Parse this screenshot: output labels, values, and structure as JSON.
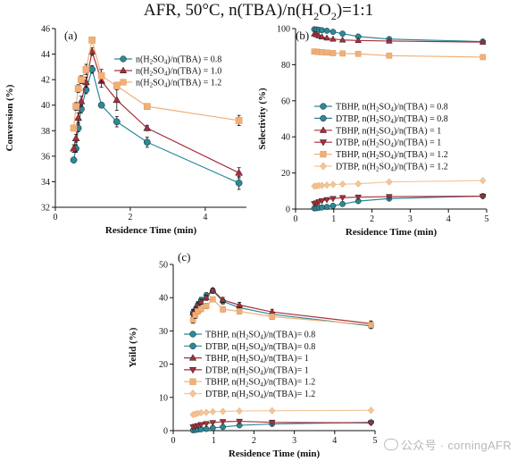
{
  "title_main": "AFR, 50°C, n(TBA)/n(H",
  "title_sub": "2",
  "title_mid": "O",
  "title_sub2": "2",
  "title_end": ")=1:1",
  "watermark": "公众号 · corningAFR",
  "colors": {
    "teal": "#2a8a9a",
    "red": "#a82f3a",
    "orange": "#f0b07a",
    "peach": "#f2c79c"
  },
  "chart_data": [
    {
      "id": "a",
      "panel_label": "(a)",
      "type": "line",
      "xlabel": "Residence Time (min)",
      "ylabel": "Conversion (%)",
      "xlim": [
        0,
        5.1
      ],
      "ylim": [
        32,
        46
      ],
      "xticks": [
        0,
        2,
        4
      ],
      "xtick_labels": [
        "0",
        "2",
        "4"
      ],
      "yticks": [
        32,
        34,
        36,
        38,
        40,
        42,
        44,
        46
      ],
      "ytick_labels": [
        "32",
        "34",
        "36",
        "38",
        "40",
        "42",
        "44",
        "46"
      ],
      "legend": "top-right",
      "series": [
        {
          "name_pre": "n(H",
          "name_sub": "2",
          "name_mid": "SO",
          "name_sub2": "4",
          "name_post": ")/n(TBA) = 0.8",
          "color": "#2a8a9a",
          "marker": "circle",
          "x": [
            0.49,
            0.55,
            0.61,
            0.69,
            0.82,
            0.98,
            1.23,
            1.64,
            2.45,
            4.9
          ],
          "y": [
            35.7,
            36.6,
            38.2,
            39.7,
            41.2,
            42.8,
            40.0,
            38.7,
            37.1,
            33.9
          ],
          "err": [
            0.2,
            0.3,
            0.3,
            0.3,
            0.3,
            0.3,
            0.2,
            0.4,
            0.4,
            0.5
          ]
        },
        {
          "name_pre": "n(H",
          "name_sub": "2",
          "name_mid": "SO",
          "name_sub2": "4",
          "name_post": ")/n(TBA) = 1.0",
          "color": "#a82f3a",
          "marker": "triangle-up",
          "x": [
            0.49,
            0.55,
            0.61,
            0.69,
            0.82,
            0.98,
            1.23,
            1.64,
            2.45,
            4.9
          ],
          "y": [
            36.6,
            37.4,
            39.0,
            40.3,
            41.8,
            44.2,
            41.9,
            40.4,
            38.2,
            34.7
          ],
          "err": [
            0.3,
            0.3,
            0.4,
            0.4,
            0.4,
            0.3,
            0.5,
            0.8,
            0.2,
            0.4
          ]
        },
        {
          "name_pre": "n(H",
          "name_sub": "2",
          "name_mid": "SO",
          "name_sub2": "4",
          "name_post": ")/n(TBA) = 1.2",
          "color": "#f0b07a",
          "marker": "square",
          "x": [
            0.49,
            0.55,
            0.61,
            0.69,
            0.82,
            0.98,
            1.23,
            1.64,
            2.45,
            4.9
          ],
          "y": [
            38.2,
            39.9,
            41.3,
            42.0,
            42.8,
            45.1,
            42.3,
            41.5,
            39.9,
            38.8
          ],
          "err": [
            0.2,
            0.3,
            0.3,
            0.3,
            0.4,
            0.2,
            0.5,
            0.2,
            0.2,
            0.4
          ]
        }
      ]
    },
    {
      "id": "b",
      "panel_label": "(b)",
      "type": "line",
      "xlabel": "Residence Time (min)",
      "ylabel": "Selectivity (%)",
      "xlim": [
        0,
        5.0
      ],
      "ylim": [
        0,
        100
      ],
      "xticks": [
        0,
        1,
        2,
        3,
        4,
        5
      ],
      "xtick_labels": [
        "0",
        "1",
        "2",
        "3",
        "4",
        "5"
      ],
      "yticks": [
        0,
        20,
        40,
        60,
        80,
        100
      ],
      "ytick_labels": [
        "0",
        "20",
        "40",
        "60",
        "80",
        "100"
      ],
      "legend": "center-right",
      "series": [
        {
          "name_pre": "TBHP, n(H",
          "name_sub": "2",
          "name_mid": "SO",
          "name_sub2": "4",
          "name_post": ")/n(TBA) = 0.8",
          "color": "#2a8a9a",
          "marker": "circle",
          "x": [
            0.49,
            0.55,
            0.61,
            0.69,
            0.82,
            0.98,
            1.23,
            1.64,
            2.45,
            4.9
          ],
          "y": [
            99.6,
            99.5,
            99.3,
            99.1,
            98.8,
            98.2,
            97.2,
            95.6,
            94.2,
            92.8
          ],
          "err": []
        },
        {
          "name_pre": "DTBP, n(H",
          "name_sub": "2",
          "name_mid": "SO",
          "name_sub2": "4",
          "name_post": ")/n(TBA) = 0.8",
          "color": "#2a8a9a",
          "marker": "circle",
          "x": [
            0.49,
            0.55,
            0.61,
            0.69,
            0.82,
            0.98,
            1.23,
            1.64,
            2.45,
            4.9
          ],
          "y": [
            0.4,
            0.5,
            0.7,
            0.9,
            1.2,
            1.8,
            2.8,
            4.4,
            5.8,
            7.2
          ],
          "err": []
        },
        {
          "name_pre": "TBHP, n(H",
          "name_sub": "2",
          "name_mid": "SO",
          "name_sub2": "4",
          "name_post": ")/n(TBA) = 1",
          "color": "#a82f3a",
          "marker": "triangle-up",
          "x": [
            0.49,
            0.55,
            0.61,
            0.69,
            0.82,
            0.98,
            1.23,
            1.64,
            2.45,
            4.9
          ],
          "y": [
            97.0,
            96.6,
            96.0,
            95.4,
            94.8,
            94.2,
            93.7,
            93.4,
            93.1,
            92.5
          ],
          "err": []
        },
        {
          "name_pre": "DTBP, n(H",
          "name_sub": "2",
          "name_mid": "SO",
          "name_sub2": "4",
          "name_post": ")/n(TBA) = 1",
          "color": "#a82f3a",
          "marker": "triangle-down",
          "x": [
            0.49,
            0.55,
            0.61,
            0.69,
            0.82,
            0.98,
            1.23,
            1.64,
            2.45,
            4.9
          ],
          "y": [
            3.0,
            3.4,
            4.0,
            4.6,
            5.2,
            5.8,
            6.3,
            6.6,
            6.9,
            7.1
          ],
          "err": []
        },
        {
          "name_pre": "TBHP, n(H",
          "name_sub": "2",
          "name_mid": "SO",
          "name_sub2": "4",
          "name_post": ")/n(TBA) = 1.2",
          "color": "#f0b07a",
          "marker": "square",
          "x": [
            0.49,
            0.55,
            0.61,
            0.69,
            0.82,
            0.98,
            1.23,
            1.64,
            2.45,
            4.9
          ],
          "y": [
            87.3,
            87.2,
            87.0,
            86.9,
            86.7,
            86.4,
            86.2,
            86.0,
            85.0,
            84.2
          ],
          "err": []
        },
        {
          "name_pre": "DTBP, n(H",
          "name_sub": "2",
          "name_mid": "SO",
          "name_sub2": "4",
          "name_post": ")/n(TBA) = 1.2",
          "color": "#f2c79c",
          "marker": "diamond",
          "x": [
            0.49,
            0.55,
            0.61,
            0.69,
            0.82,
            0.98,
            1.23,
            1.64,
            2.45,
            4.9
          ],
          "y": [
            12.7,
            12.8,
            13.0,
            13.1,
            13.3,
            13.6,
            13.8,
            14.0,
            15.0,
            15.8
          ],
          "err": []
        }
      ]
    },
    {
      "id": "c",
      "panel_label": "(c)",
      "type": "line",
      "xlabel": "Residence Time (min)",
      "ylabel": "Yeild (%)",
      "xlim": [
        0,
        5.0
      ],
      "ylim": [
        0,
        50
      ],
      "xticks": [
        0,
        1,
        2,
        3,
        4,
        5
      ],
      "xtick_labels": [
        "0",
        "1",
        "2",
        "3",
        "4",
        "5"
      ],
      "yticks": [
        0,
        10,
        20,
        30,
        40,
        50
      ],
      "ytick_labels": [
        "0",
        "10",
        "20",
        "30",
        "40",
        "50"
      ],
      "legend": "center-left",
      "series": [
        {
          "name_pre": "TBHP, n(H",
          "name_sub": "2",
          "name_mid": "SO",
          "name_sub2": "4",
          "name_post": ")/n(TBA)= 0.8",
          "color": "#2a8a9a",
          "marker": "circle",
          "x": [
            0.49,
            0.55,
            0.61,
            0.69,
            0.82,
            0.98,
            1.23,
            1.64,
            2.45,
            4.9
          ],
          "y": [
            35.5,
            36.4,
            37.9,
            39.3,
            40.7,
            42.1,
            38.9,
            37.0,
            35.0,
            31.5
          ],
          "err": [
            1.0,
            1.0,
            1.0,
            0.8,
            0.8,
            0.8,
            0.8,
            0.8,
            0.8,
            0.8
          ]
        },
        {
          "name_pre": "DTBP, n(H",
          "name_sub": "2",
          "name_mid": "SO",
          "name_sub2": "4",
          "name_post": ")/n(TBA)= 0.8",
          "color": "#2a8a9a",
          "marker": "circle",
          "x": [
            0.49,
            0.55,
            0.61,
            0.69,
            0.82,
            0.98,
            1.23,
            1.64,
            2.45,
            4.9
          ],
          "y": [
            0.1,
            0.2,
            0.3,
            0.4,
            0.5,
            0.8,
            1.1,
            1.6,
            2.0,
            2.5
          ],
          "err": []
        },
        {
          "name_pre": "TBHP, n(H",
          "name_sub": "2",
          "name_mid": "SO",
          "name_sub2": "4",
          "name_post": ")/n(TBA)= 1",
          "color": "#a82f3a",
          "marker": "triangle-up",
          "x": [
            0.49,
            0.55,
            0.61,
            0.69,
            0.82,
            0.98,
            1.23,
            1.64,
            2.45,
            4.9
          ],
          "y": [
            35.4,
            36.2,
            37.6,
            38.7,
            40.0,
            42.3,
            39.3,
            37.8,
            35.7,
            32.2
          ],
          "err": [
            1.0,
            1.0,
            0.8,
            0.8,
            0.8,
            0.6,
            0.8,
            0.8,
            0.8,
            0.8
          ]
        },
        {
          "name_pre": "DTBP, n(H",
          "name_sub": "2",
          "name_mid": "SO",
          "name_sub2": "4",
          "name_post": ")/n(TBA)= 1",
          "color": "#a82f3a",
          "marker": "triangle-down",
          "x": [
            0.49,
            0.55,
            0.61,
            0.69,
            0.82,
            0.98,
            1.23,
            1.64,
            2.45,
            4.9
          ],
          "y": [
            1.1,
            1.3,
            1.5,
            1.8,
            2.1,
            2.4,
            2.7,
            2.8,
            2.5,
            2.3
          ],
          "err": []
        },
        {
          "name_pre": "TBHP, n(H",
          "name_sub": "2",
          "name_mid": "SO",
          "name_sub2": "4",
          "name_post": ")/n(TBA)= 1.2",
          "color": "#f0b07a",
          "marker": "square",
          "x": [
            0.49,
            0.55,
            0.61,
            0.69,
            0.82,
            0.98,
            1.23,
            1.64,
            2.45,
            4.9
          ],
          "y": [
            33.3,
            34.8,
            35.9,
            36.6,
            37.5,
            39.5,
            36.5,
            35.9,
            34.3,
            31.8
          ],
          "err": [
            1.0,
            1.0,
            0.8,
            0.8,
            0.8,
            0.6,
            0.8,
            0.8,
            0.8,
            0.8
          ]
        },
        {
          "name_pre": "DTBP, n(H",
          "name_sub": "2",
          "name_mid": "SO",
          "name_sub2": "4",
          "name_post": ")/n(TBA)= 1.2",
          "color": "#f2c79c",
          "marker": "diamond",
          "x": [
            0.49,
            0.55,
            0.61,
            0.69,
            0.82,
            0.98,
            1.23,
            1.64,
            2.45,
            4.9
          ],
          "y": [
            4.8,
            5.0,
            5.2,
            5.4,
            5.5,
            5.7,
            5.8,
            5.9,
            6.0,
            6.1
          ],
          "err": []
        }
      ]
    }
  ]
}
